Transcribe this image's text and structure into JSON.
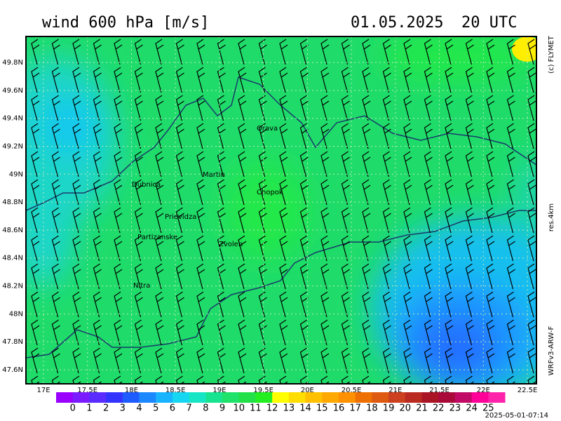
{
  "header": {
    "title": "wind 600 hPa [m/s]",
    "date": "01.05.2025",
    "time": "20 UTC"
  },
  "side": {
    "copyright": "(c) FLYMET",
    "resolution": "res.4km",
    "model": "WRFv3-ARW-F"
  },
  "footer": {
    "timestamp": "2025-05-01-07:14"
  },
  "map": {
    "lat_ticks": [
      {
        "value": 49.8,
        "label": "49.8N"
      },
      {
        "value": 49.6,
        "label": "49.6N"
      },
      {
        "value": 49.4,
        "label": "49.4N"
      },
      {
        "value": 49.2,
        "label": "49.2N"
      },
      {
        "value": 49,
        "label": "49N"
      },
      {
        "value": 48.8,
        "label": "48.8N"
      },
      {
        "value": 48.6,
        "label": "48.6N"
      },
      {
        "value": 48.4,
        "label": "48.4N"
      },
      {
        "value": 48.2,
        "label": "48.2N"
      },
      {
        "value": 48,
        "label": "48N"
      },
      {
        "value": 47.8,
        "label": "47.8N"
      },
      {
        "value": 47.6,
        "label": "47.6N"
      }
    ],
    "lon_ticks": [
      {
        "value": 17,
        "label": "17E"
      },
      {
        "value": 17.5,
        "label": "17.5E"
      },
      {
        "value": 18,
        "label": "18E"
      },
      {
        "value": 18.5,
        "label": "18.5E"
      },
      {
        "value": 19,
        "label": "19E"
      },
      {
        "value": 19.5,
        "label": "19.5E"
      },
      {
        "value": 20,
        "label": "20E"
      },
      {
        "value": 20.5,
        "label": "20.5E"
      },
      {
        "value": 21,
        "label": "21E"
      },
      {
        "value": 21.5,
        "label": "21.5E"
      },
      {
        "value": 22,
        "label": "22E"
      },
      {
        "value": 22.5,
        "label": "22.5E"
      }
    ],
    "cities": [
      "Orava",
      "Martin",
      "Dubnica",
      "Chopok",
      "Prievidza",
      "Partizanske",
      "Zvolen",
      "Nitra"
    ]
  },
  "colorbar": {
    "labels": [
      0,
      1,
      2,
      3,
      4,
      5,
      6,
      7,
      8,
      9,
      10,
      11,
      12,
      13,
      14,
      15,
      16,
      17,
      18,
      19,
      20,
      21,
      22,
      23,
      24,
      25
    ],
    "colors": [
      "#9900ff",
      "#7a1cff",
      "#5a2cff",
      "#3333ff",
      "#1f5cff",
      "#1c88ff",
      "#19b4ff",
      "#16d6f2",
      "#16e6c6",
      "#18e48f",
      "#1ee26a",
      "#22e048",
      "#22ee22",
      "#ffff00",
      "#ffdd00",
      "#ffc000",
      "#ffa800",
      "#ff9000",
      "#ee7000",
      "#dd5a10",
      "#cc4020",
      "#bb2a20",
      "#aa1525",
      "#aa0a3a",
      "#c00a66",
      "#ff0099",
      "#ff22aa"
    ]
  }
}
